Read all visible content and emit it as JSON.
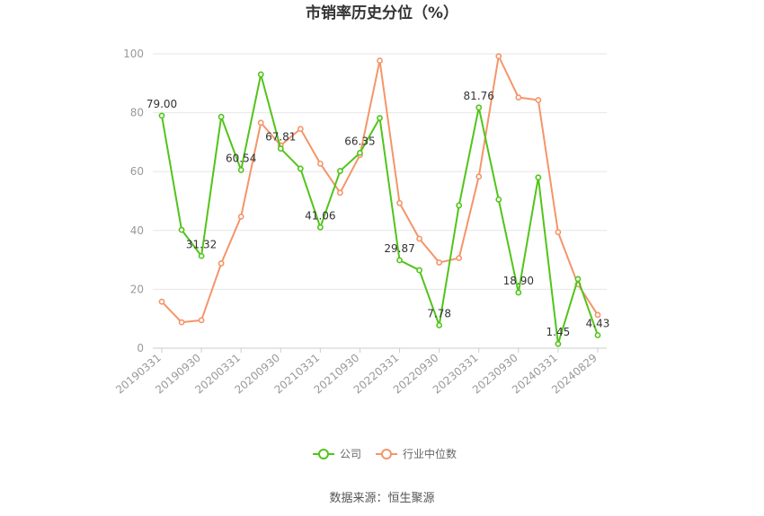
{
  "chart_data": {
    "type": "line",
    "title": "市销率历史分位（%）",
    "x_tick_labels": [
      "20190331",
      "20190930",
      "20200331",
      "20200930",
      "20210331",
      "20210930",
      "20220331",
      "20220930",
      "20230331",
      "20230930",
      "20240331",
      "20240829"
    ],
    "ylim": [
      0,
      100
    ],
    "y_ticks": [
      0,
      20,
      40,
      60,
      80,
      100
    ],
    "grid": true,
    "legend_position": "bottom",
    "series": [
      {
        "name": "公司",
        "color": "#52c41a",
        "values": [
          79.0,
          40.2,
          31.32,
          78.6,
          60.54,
          93.0,
          67.81,
          61.0,
          41.06,
          60.2,
          66.35,
          78.2,
          29.87,
          26.5,
          7.78,
          48.5,
          81.76,
          50.5,
          18.9,
          58.0,
          1.45,
          23.5,
          4.43
        ]
      },
      {
        "name": "行业中位数",
        "color": "#f4956a",
        "values": [
          15.8,
          8.8,
          9.5,
          28.8,
          44.7,
          76.6,
          68.9,
          74.5,
          62.7,
          52.8,
          65.6,
          97.7,
          49.3,
          37.2,
          29.1,
          30.6,
          58.3,
          99.2,
          85.2,
          84.3,
          39.4,
          21.7,
          11.3
        ]
      }
    ],
    "data_labels": [
      {
        "index": 0,
        "text": "79.00"
      },
      {
        "index": 2,
        "text": "31.32"
      },
      {
        "index": 4,
        "text": "60.54"
      },
      {
        "index": 6,
        "text": "67.81"
      },
      {
        "index": 8,
        "text": "41.06"
      },
      {
        "index": 10,
        "text": "66.35"
      },
      {
        "index": 12,
        "text": "29.87"
      },
      {
        "index": 14,
        "text": "7.78"
      },
      {
        "index": 16,
        "text": "81.76"
      },
      {
        "index": 18,
        "text": "18.90"
      },
      {
        "index": 20,
        "text": "1.45"
      },
      {
        "index": 22,
        "text": "4.43"
      }
    ]
  },
  "footer": {
    "source": "数据来源：恒生聚源"
  }
}
